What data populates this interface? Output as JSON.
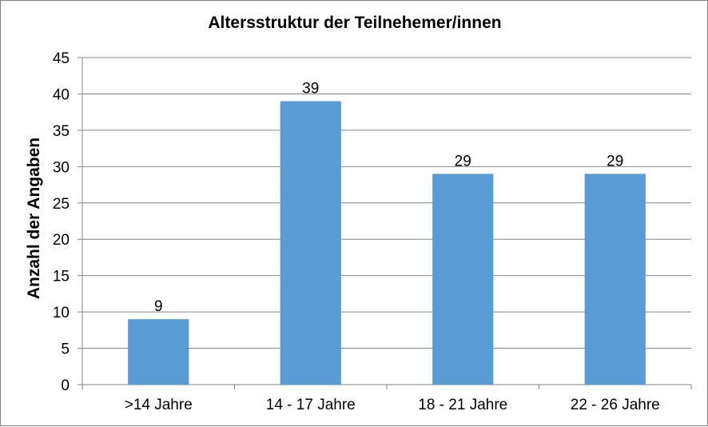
{
  "chart_data": {
    "type": "bar",
    "title": "Altersstruktur der Teilnehemer/innen",
    "xlabel": "",
    "ylabel": "Anzahl der Angaben",
    "categories": [
      ">14 Jahre",
      "14 - 17 Jahre",
      "18 - 21 Jahre",
      "22 - 26 Jahre"
    ],
    "values": [
      9,
      39,
      29,
      29
    ],
    "ylim": [
      0,
      45
    ],
    "yticks": [
      0,
      5,
      10,
      15,
      20,
      25,
      30,
      35,
      40,
      45
    ],
    "grid": true,
    "legend": "none",
    "bar_color": "#5b9bd5",
    "grid_color": "#868686"
  }
}
